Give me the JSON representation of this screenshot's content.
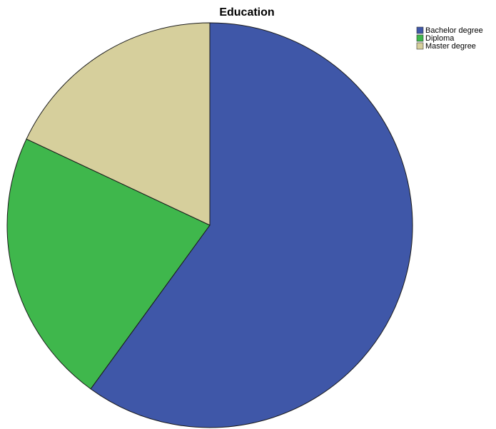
{
  "chart_data": {
    "type": "pie",
    "title": "Education",
    "categories": [
      "Bachelor degree",
      "Diploma",
      "Master degree"
    ],
    "values": [
      60.0,
      22.0,
      18.0
    ],
    "colors": [
      "#3f57a8",
      "#3fb74c",
      "#d6cf9c"
    ],
    "start_angle_deg": 0,
    "direction": "clockwise",
    "legend_position": "top-right",
    "slice_stroke": "#1a1a1a"
  }
}
